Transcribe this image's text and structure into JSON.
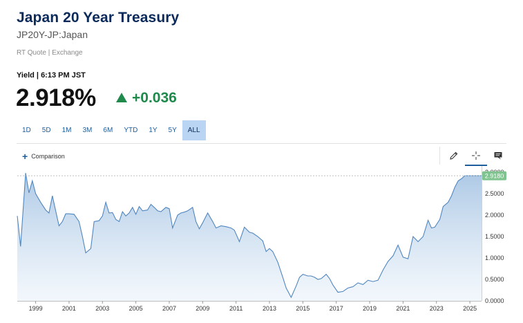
{
  "header": {
    "title": "Japan 20 Year Treasury",
    "symbol": "JP20Y-JP:Japan",
    "quote_source": "RT Quote | Exchange",
    "yield_time": "Yield | 6:13 PM JST",
    "price": "2.918%",
    "change": "+0.036"
  },
  "ranges": [
    "1D",
    "5D",
    "1M",
    "3M",
    "6M",
    "YTD",
    "1Y",
    "5Y",
    "ALL"
  ],
  "active_range": "ALL",
  "toolbar": {
    "comparison_label": "Comparison",
    "icons": [
      "pencil-icon",
      "crosshair-icon",
      "comment-icon"
    ]
  },
  "colors": {
    "accent": "#1d5d9c",
    "up": "#1f8a4c",
    "line": "#4f86bf",
    "last_badge": "#7fc48f"
  },
  "chart_data": {
    "type": "area",
    "xlabel": "",
    "ylabel": "",
    "x_ticks": [
      "1999",
      "2001",
      "2003",
      "2005",
      "2007",
      "2009",
      "2011",
      "2013",
      "2015",
      "2017",
      "2019",
      "2021",
      "2023",
      "2025"
    ],
    "y_ticks": [
      "0.0000",
      "0.5000",
      "1.0000",
      "1.5000",
      "2.0000",
      "2.5000",
      "3.0000"
    ],
    "ylim": [
      0,
      3.0
    ],
    "xlim": [
      1998.0,
      2025.8
    ],
    "last_value_label": "2.9180",
    "grid": false,
    "x": [
      1998.0,
      1998.2,
      1998.5,
      1998.7,
      1998.9,
      1999.1,
      1999.4,
      1999.7,
      1999.9,
      2000.1,
      2000.3,
      2000.5,
      2000.7,
      2000.9,
      2001.1,
      2001.4,
      2001.7,
      2001.9,
      2002.1,
      2002.4,
      2002.6,
      2002.9,
      2003.1,
      2003.3,
      2003.5,
      2003.7,
      2003.9,
      2004.1,
      2004.3,
      2004.5,
      2004.7,
      2004.9,
      2005.1,
      2005.3,
      2005.5,
      2005.8,
      2006.0,
      2006.2,
      2006.4,
      2006.6,
      2006.9,
      2007.1,
      2007.3,
      2007.6,
      2007.8,
      2008.0,
      2008.2,
      2008.5,
      2008.7,
      2008.9,
      2009.1,
      2009.4,
      2009.7,
      2009.9,
      2010.2,
      2010.5,
      2010.8,
      2011.0,
      2011.3,
      2011.6,
      2011.9,
      2012.1,
      2012.4,
      2012.7,
      2012.9,
      2013.1,
      2013.3,
      2013.6,
      2013.9,
      2014.1,
      2014.4,
      2014.7,
      2014.9,
      2015.1,
      2015.4,
      2015.6,
      2015.8,
      2016.0,
      2016.2,
      2016.5,
      2016.7,
      2016.9,
      2017.2,
      2017.5,
      2017.8,
      2018.1,
      2018.4,
      2018.7,
      2019.0,
      2019.3,
      2019.6,
      2019.9,
      2020.2,
      2020.5,
      2020.8,
      2021.1,
      2021.4,
      2021.7,
      2022.0,
      2022.3,
      2022.6,
      2022.8,
      2023.0,
      2023.3,
      2023.5,
      2023.8,
      2024.0,
      2024.2,
      2024.4,
      2024.6,
      2024.8,
      2025.0,
      2025.2,
      2025.4,
      2025.6,
      2025.8
    ],
    "values": [
      1.98,
      1.27,
      2.98,
      2.52,
      2.8,
      2.5,
      2.3,
      2.12,
      2.05,
      2.45,
      2.1,
      1.75,
      1.85,
      2.03,
      2.03,
      2.02,
      1.85,
      1.5,
      1.12,
      1.22,
      1.85,
      1.87,
      1.98,
      2.3,
      2.05,
      2.06,
      1.9,
      1.85,
      2.08,
      1.98,
      2.05,
      2.18,
      2.02,
      2.2,
      2.1,
      2.12,
      2.25,
      2.18,
      2.1,
      2.08,
      2.18,
      2.15,
      1.7,
      2.0,
      2.05,
      2.07,
      2.1,
      2.18,
      1.85,
      1.68,
      1.82,
      2.05,
      1.85,
      1.7,
      1.75,
      1.73,
      1.7,
      1.65,
      1.38,
      1.72,
      1.6,
      1.58,
      1.5,
      1.4,
      1.15,
      1.22,
      1.15,
      0.9,
      0.55,
      0.3,
      0.08,
      0.35,
      0.55,
      0.62,
      0.58,
      0.58,
      0.55,
      0.5,
      0.52,
      0.62,
      0.52,
      0.37,
      0.2,
      0.22,
      0.3,
      0.33,
      0.42,
      0.38,
      0.48,
      0.45,
      0.48,
      0.72,
      0.92,
      1.05,
      1.3,
      1.02,
      0.98,
      1.5,
      1.38,
      1.5,
      1.88,
      1.7,
      1.72,
      1.9,
      2.2,
      2.3,
      2.45,
      2.65,
      2.8,
      2.85,
      2.918,
      2.918,
      2.918,
      2.918,
      2.918,
      2.918
    ]
  }
}
